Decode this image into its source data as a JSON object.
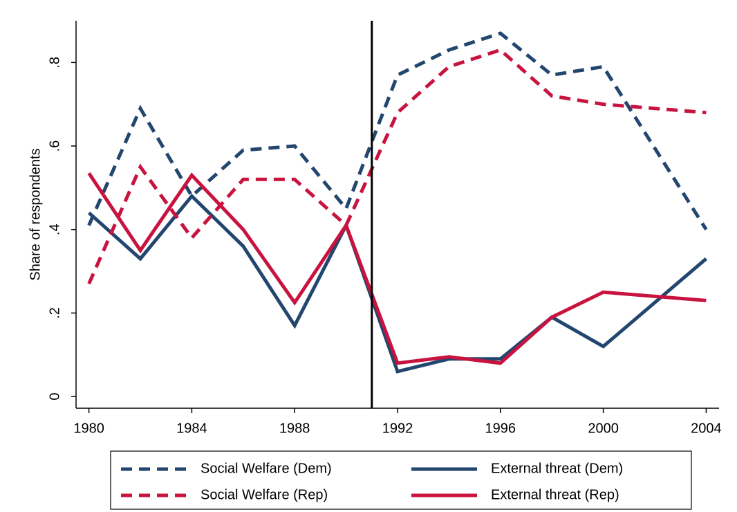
{
  "chart_data": {
    "type": "line",
    "y_label": "Share of respondents",
    "x": [
      1980,
      1982,
      1984,
      1986,
      1988,
      1990,
      1992,
      1994,
      1996,
      1998,
      2000,
      2004
    ],
    "series": [
      {
        "name": "Social Welfare (Dem)",
        "color": "#23466f",
        "style": "dashed",
        "values": [
          0.41,
          0.69,
          0.48,
          0.59,
          0.6,
          0.45,
          0.77,
          0.83,
          0.87,
          0.77,
          0.79,
          0.4
        ]
      },
      {
        "name": "External threat (Dem)",
        "color": "#23466f",
        "style": "solid",
        "values": [
          0.44,
          0.33,
          0.48,
          0.36,
          0.17,
          0.41,
          0.06,
          0.09,
          0.09,
          0.19,
          0.12,
          0.33
        ]
      },
      {
        "name": "Social Welfare (Rep)",
        "color": "#c8133f",
        "style": "dashed",
        "values": [
          0.27,
          0.55,
          0.38,
          0.52,
          0.52,
          0.41,
          0.68,
          0.79,
          0.83,
          0.72,
          0.7,
          0.68
        ]
      },
      {
        "name": "External threat (Rep)",
        "color": "#c8133f",
        "style": "solid",
        "values": [
          0.535,
          0.35,
          0.53,
          0.4,
          0.225,
          0.41,
          0.08,
          0.095,
          0.08,
          0.19,
          0.25,
          0.23
        ]
      }
    ],
    "vline": 1991,
    "xlim": [
      1979.5,
      2004.5
    ],
    "xticks": [
      1980,
      1984,
      1988,
      1992,
      1996,
      2000,
      2004
    ],
    "ylim": [
      -0.028,
      0.9
    ],
    "yticks": [
      0,
      {
        "value": 0.2,
        "label": ".2"
      },
      {
        "value": 0.4,
        "label": ".4"
      },
      {
        "value": 0.6,
        "label": ".6"
      },
      {
        "value": 0.8,
        "label": ".8"
      }
    ],
    "legend": "bottom"
  }
}
